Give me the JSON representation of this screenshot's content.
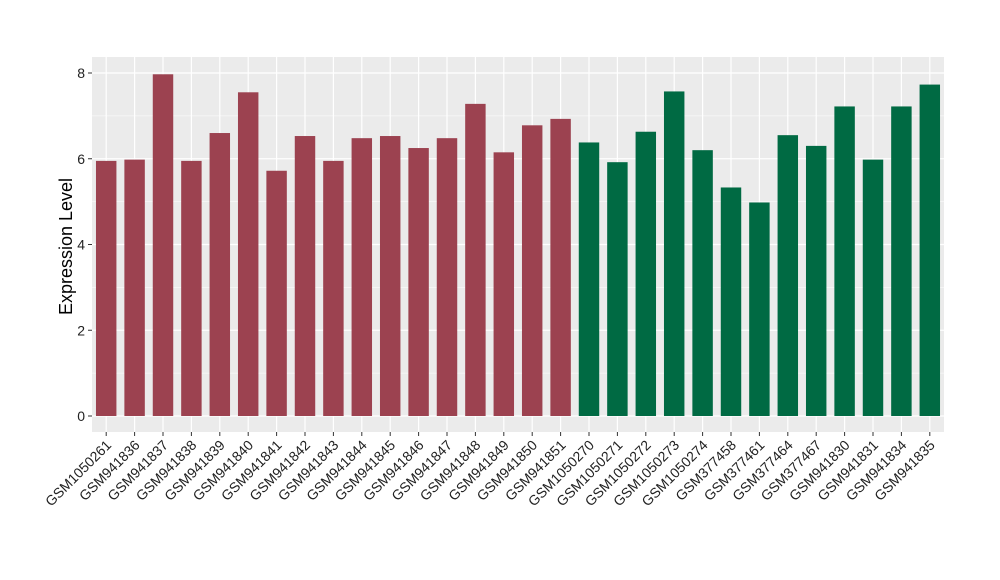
{
  "chart_data": {
    "type": "bar",
    "title": "",
    "xlabel": "",
    "ylabel": "Expression Level",
    "ylim": [
      0,
      8.3
    ],
    "yticks": [
      0,
      2,
      4,
      6,
      8
    ],
    "grid": true,
    "legend": "none",
    "colors": {
      "group1": "#9c4250",
      "group2": "#006a43",
      "panel": "#ebebeb",
      "gridline": "#ffffff"
    },
    "categories": [
      "GSM1050261",
      "GSM941836",
      "GSM941837",
      "GSM941838",
      "GSM941839",
      "GSM941840",
      "GSM941841",
      "GSM941842",
      "GSM941843",
      "GSM941844",
      "GSM941845",
      "GSM941846",
      "GSM941847",
      "GSM941848",
      "GSM941849",
      "GSM941850",
      "GSM941851",
      "GSM1050270",
      "GSM1050271",
      "GSM1050272",
      "GSM1050273",
      "GSM1050274",
      "GSM377458",
      "GSM377461",
      "GSM377464",
      "GSM377467",
      "GSM941830",
      "GSM941831",
      "GSM941834",
      "GSM941835"
    ],
    "values": [
      5.95,
      5.98,
      7.97,
      5.95,
      6.6,
      7.55,
      5.72,
      6.53,
      5.95,
      6.48,
      6.53,
      6.25,
      6.48,
      7.28,
      6.15,
      6.78,
      6.93,
      6.38,
      5.92,
      6.63,
      7.57,
      6.2,
      5.33,
      4.98,
      6.55,
      6.3,
      7.22,
      5.98,
      7.22,
      7.73
    ],
    "groups": [
      1,
      1,
      1,
      1,
      1,
      1,
      1,
      1,
      1,
      1,
      1,
      1,
      1,
      1,
      1,
      1,
      1,
      2,
      2,
      2,
      2,
      2,
      2,
      2,
      2,
      2,
      2,
      2,
      2,
      2
    ]
  }
}
